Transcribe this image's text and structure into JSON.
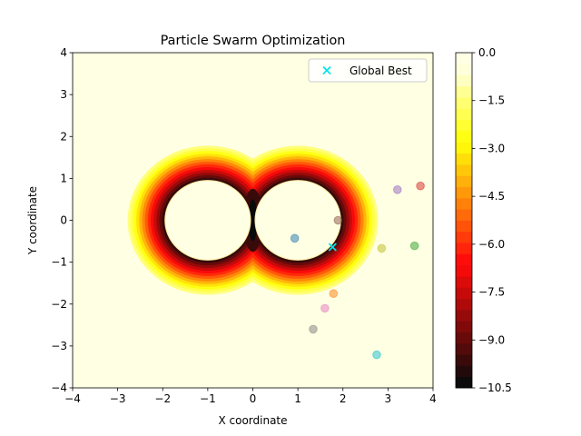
{
  "chart_data": {
    "type": "scatter",
    "title": "Particle Swarm Optimization",
    "xlabel": "X coordinate",
    "ylabel": "Y coordinate",
    "xlim": [
      -4,
      4
    ],
    "ylim": [
      -4,
      4
    ],
    "x_ticks": [
      -4,
      -3,
      -2,
      -1,
      0,
      1,
      2,
      3,
      4
    ],
    "y_ticks": [
      -4,
      -3,
      -2,
      -1,
      0,
      1,
      2,
      3,
      4
    ],
    "x_tick_labels": [
      "−4",
      "−3",
      "−2",
      "−1",
      "0",
      "1",
      "2",
      "3",
      "4"
    ],
    "y_tick_labels": [
      "−4",
      "−3",
      "−2",
      "−1",
      "0",
      "1",
      "2",
      "3",
      "4"
    ],
    "grid": false,
    "legend": {
      "position": "upper right",
      "entries": [
        "Global Best"
      ]
    },
    "background_contour": {
      "colormap": "hot",
      "wells": [
        {
          "x": -1,
          "y": 0
        },
        {
          "x": 1,
          "y": 0
        }
      ],
      "well_radius": 0.95
    },
    "colorbar": {
      "min": -10.5,
      "max": 0.0,
      "levels": 30,
      "ticks": [
        0.0,
        -1.5,
        -3.0,
        -4.5,
        -6.0,
        -7.5,
        -9.0,
        -10.5
      ],
      "tick_labels": [
        "0.0",
        "−1.5",
        "−3.0",
        "−4.5",
        "−6.0",
        "−7.5",
        "−9.0",
        "−10.5"
      ]
    },
    "particles": [
      {
        "x": 0.93,
        "y": -0.43,
        "color": "#1f77b4"
      },
      {
        "x": 1.79,
        "y": -1.75,
        "color": "#ff7f0e"
      },
      {
        "x": 3.59,
        "y": -0.61,
        "color": "#2ca02c"
      },
      {
        "x": 3.72,
        "y": 0.82,
        "color": "#d62728"
      },
      {
        "x": 3.21,
        "y": 0.73,
        "color": "#9467bd"
      },
      {
        "x": 1.89,
        "y": 0.0,
        "color": "#8c564b"
      },
      {
        "x": 1.6,
        "y": -2.1,
        "color": "#e377c2"
      },
      {
        "x": 1.34,
        "y": -2.6,
        "color": "#7f7f7f"
      },
      {
        "x": 2.86,
        "y": -0.67,
        "color": "#bcbd22"
      },
      {
        "x": 2.75,
        "y": -3.21,
        "color": "#17becf"
      }
    ],
    "global_best": {
      "x": 1.77,
      "y": -0.64,
      "color": "#00e5ee",
      "label": "Global Best"
    }
  }
}
